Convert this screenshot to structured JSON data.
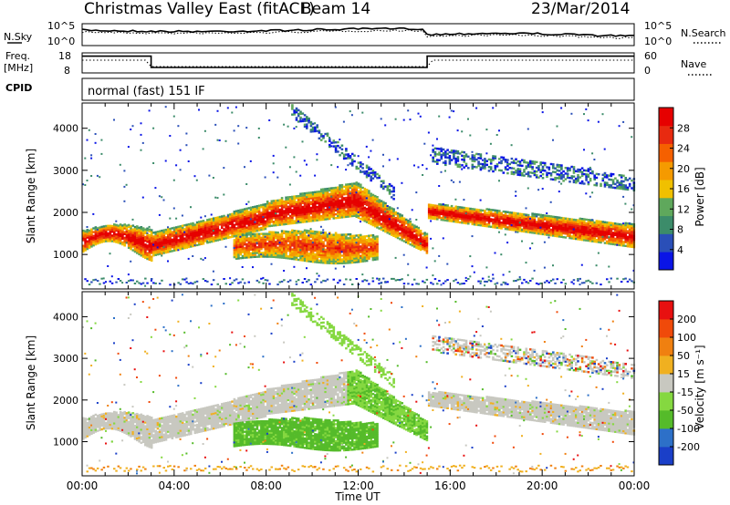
{
  "header": {
    "title": "Christmas Valley East (fitACF)",
    "beam": "Beam 14",
    "date": "23/Mar/2014"
  },
  "noise_panel": {
    "left_label": "N.Sky",
    "right_label": "N.Search",
    "tick_top": "10^5",
    "tick_bottom": "10^0"
  },
  "freq_panel": {
    "left_label_1": "Freq.",
    "left_label_2": "[MHz]",
    "right_label": "Nave",
    "left_ticks": [
      "18",
      "8"
    ],
    "right_ticks": [
      "60",
      "0"
    ],
    "freq_series": [
      [
        0,
        17.6
      ],
      [
        3.0,
        17.6
      ],
      [
        3.0,
        9.9
      ],
      [
        15.0,
        9.9
      ],
      [
        15.0,
        17.6
      ],
      [
        24,
        17.6
      ]
    ]
  },
  "cpid": {
    "label": "CPID",
    "text": "normal (fast) 151 IF"
  },
  "power_panel": {
    "ylabel": "Slant Range [km]",
    "colorbar_label": "Power [dB]",
    "colorbar_ticks": [
      "28",
      "24",
      "20",
      "16",
      "12",
      "8",
      "4"
    ],
    "colors": [
      "#0a14e6",
      "#2a4fb8",
      "#3c8c6a",
      "#5fa85c",
      "#f0c000",
      "#f59a00",
      "#f56000",
      "#e82a10",
      "#e60000"
    ]
  },
  "velocity_panel": {
    "ylabel": "Slant Range [km]",
    "colorbar_label": "Velocity [m s⁻¹]",
    "colorbar_ticks": [
      "200",
      "100",
      "50",
      "15",
      "-15",
      "-50",
      "-100",
      "-200"
    ],
    "colors": [
      "#1a3fc8",
      "#2d70c8",
      "#55bb2a",
      "#85d840",
      "#c8c8c0",
      "#f0b020",
      "#f08010",
      "#f04a0a",
      "#e81010"
    ]
  },
  "x_axis": {
    "label": "Time UT",
    "ticks": [
      "00:00",
      "04:00",
      "08:00",
      "12:00",
      "16:00",
      "20:00",
      "00:00"
    ]
  },
  "chart_data": {
    "type": "heatmap",
    "title": "Christmas Valley East (fitACF)",
    "xlabel": "Time UT",
    "ylabel": "Slant Range [km]",
    "xlim": [
      0,
      24
    ],
    "ylim": [
      180,
      4600
    ],
    "y_ticks": [
      1000,
      2000,
      3000,
      4000
    ],
    "panels": [
      {
        "name": "Power",
        "unit": "dB",
        "colorbar": [
          4,
          8,
          12,
          16,
          20,
          24,
          28
        ],
        "regions": [
          {
            "t": [
              0,
              3.0
            ],
            "range": [
              1000,
              1650
            ],
            "value": 26
          },
          {
            "t": [
              3.0,
              15.0
            ],
            "range_start": [
              900,
              2000,
              2850,
              1050
            ],
            "value": 24
          },
          {
            "t": [
              6,
              12
            ],
            "range": [
              800,
              1500
            ],
            "value": 18
          },
          {
            "t": [
              15,
              24
            ],
            "range": [
              1100,
              2100
            ],
            "value": 26
          },
          {
            "t": [
              15,
              24
            ],
            "range": [
              2500,
              3500
            ],
            "value": 6
          }
        ]
      },
      {
        "name": "Velocity",
        "unit": "m s-1",
        "colorbar": [
          -200,
          -100,
          -50,
          -15,
          15,
          50,
          100,
          200
        ],
        "regions": [
          {
            "t": [
              0,
              3.0
            ],
            "range": [
              1000,
              1650
            ],
            "value": 0
          },
          {
            "t": [
              6.5,
              12.7
            ],
            "range": [
              850,
              1500
            ],
            "value": 60
          },
          {
            "t": [
              15,
              24
            ],
            "range": [
              1100,
              2100
            ],
            "value": 0
          }
        ]
      }
    ]
  }
}
